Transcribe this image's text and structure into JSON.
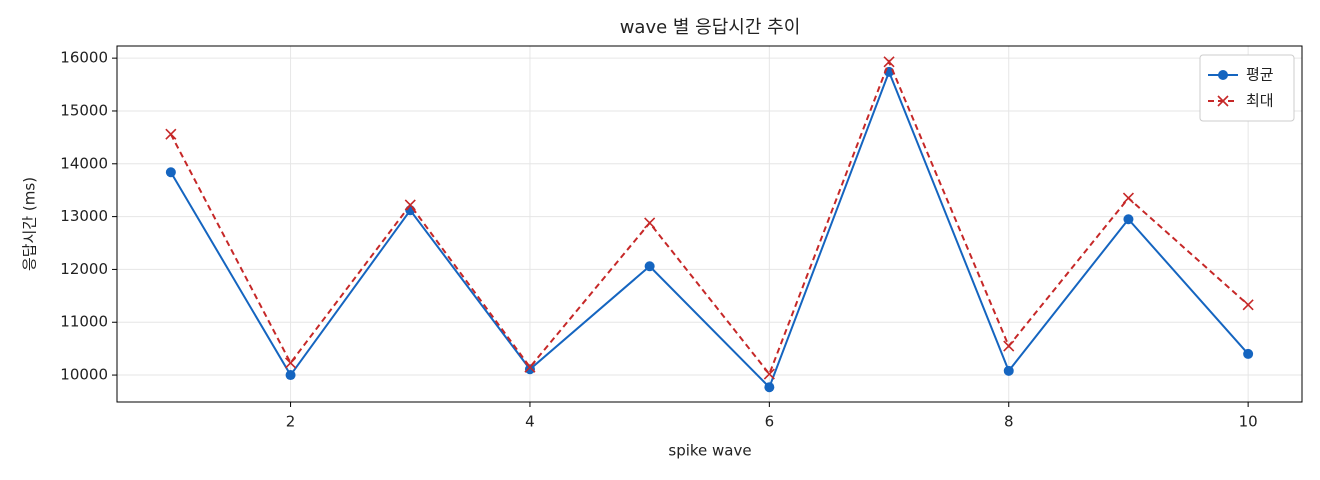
{
  "chart_data": {
    "type": "line",
    "title": "wave 별 응답시간 추이",
    "xlabel": "spike wave",
    "ylabel": "응답시간 (ms)",
    "x": [
      1,
      2,
      3,
      4,
      5,
      6,
      7,
      8,
      9,
      10
    ],
    "series": [
      {
        "name": "평균",
        "color": "#1565c0",
        "marker": "o",
        "linestyle": "solid",
        "values": [
          13840,
          10000,
          13120,
          10110,
          12060,
          9770,
          15740,
          10080,
          12950,
          10400
        ]
      },
      {
        "name": "최대",
        "color": "#c62828",
        "marker": "x",
        "linestyle": "dashed",
        "values": [
          14560,
          10230,
          13220,
          10150,
          12880,
          10020,
          15930,
          10550,
          13350,
          11330
        ]
      }
    ],
    "xlim": [
      0.55,
      10.45
    ],
    "xticks": [
      2,
      4,
      6,
      8,
      10
    ],
    "ylim": [
      9490,
      16230
    ],
    "yticks": [
      10000,
      11000,
      12000,
      13000,
      14000,
      15000,
      16000
    ],
    "grid": true,
    "legend": "upper right"
  }
}
